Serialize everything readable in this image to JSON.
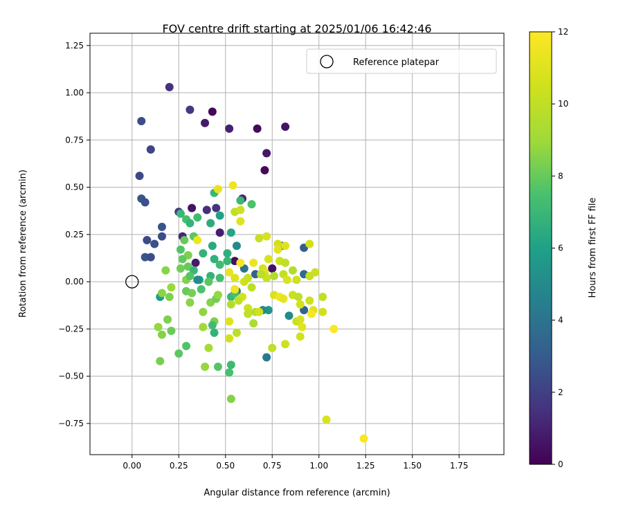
{
  "chart_data": {
    "type": "scatter",
    "title": "FOV centre drift starting at 2025/01/06 16:42:46",
    "xlabel": "Angular distance from reference (arcmin)",
    "ylabel": "Rotation from reference (arcmin)",
    "xlim": [
      -0.225,
      1.99
    ],
    "ylim": [
      -0.915,
      1.315
    ],
    "xticks": [
      0.0,
      0.25,
      0.5,
      0.75,
      1.0,
      1.25,
      1.5,
      1.75
    ],
    "xtick_labels": [
      "0.00",
      "0.25",
      "0.50",
      "0.75",
      "1.00",
      "1.25",
      "1.50",
      "1.75"
    ],
    "yticks": [
      -0.75,
      -0.5,
      -0.25,
      0.0,
      0.25,
      0.5,
      0.75,
      1.0,
      1.25
    ],
    "ytick_labels": [
      "−0.75",
      "−0.50",
      "−0.25",
      "0.00",
      "0.25",
      "0.50",
      "0.75",
      "1.00",
      "1.25"
    ],
    "grid": true,
    "legend": {
      "placement": "top-right",
      "label": "Reference platepar",
      "marker": "hollow-circle"
    },
    "reference_point": {
      "x": 0.0,
      "y": 0.0
    },
    "colorbar": {
      "label": "Hours from first FF file",
      "colormap": "viridis",
      "range": [
        0,
        12
      ],
      "ticks": [
        0,
        2,
        4,
        6,
        8,
        10,
        12
      ],
      "tick_labels": [
        "0",
        "2",
        "4",
        "6",
        "8",
        "10",
        "12"
      ]
    },
    "points": [
      {
        "x": 0.43,
        "y": 0.9,
        "h": 0.2
      },
      {
        "x": 0.67,
        "y": 0.81,
        "h": 0.3
      },
      {
        "x": 0.39,
        "y": 0.84,
        "h": 0.8
      },
      {
        "x": 0.52,
        "y": 0.81,
        "h": 1.0
      },
      {
        "x": 0.82,
        "y": 0.82,
        "h": 0.6
      },
      {
        "x": 0.72,
        "y": 0.68,
        "h": 0.7
      },
      {
        "x": 0.71,
        "y": 0.59,
        "h": 0.3
      },
      {
        "x": 0.2,
        "y": 1.03,
        "h": 1.5
      },
      {
        "x": 0.31,
        "y": 0.91,
        "h": 1.8
      },
      {
        "x": 0.05,
        "y": 0.85,
        "h": 2.5
      },
      {
        "x": 0.1,
        "y": 0.7,
        "h": 2.1
      },
      {
        "x": 0.04,
        "y": 0.56,
        "h": 2.3
      },
      {
        "x": 0.05,
        "y": 0.44,
        "h": 2.8
      },
      {
        "x": 0.07,
        "y": 0.42,
        "h": 2.6
      },
      {
        "x": 0.16,
        "y": 0.29,
        "h": 2.7
      },
      {
        "x": 0.16,
        "y": 0.24,
        "h": 2.5
      },
      {
        "x": 0.08,
        "y": 0.22,
        "h": 2.4
      },
      {
        "x": 0.12,
        "y": 0.2,
        "h": 2.6
      },
      {
        "x": 0.07,
        "y": 0.13,
        "h": 2.8
      },
      {
        "x": 0.1,
        "y": 0.13,
        "h": 2.5
      },
      {
        "x": 0.32,
        "y": 0.39,
        "h": 0.6
      },
      {
        "x": 0.4,
        "y": 0.38,
        "h": 1.4
      },
      {
        "x": 0.45,
        "y": 0.39,
        "h": 1.6
      },
      {
        "x": 0.25,
        "y": 0.37,
        "h": 1.8
      },
      {
        "x": 0.27,
        "y": 0.24,
        "h": 1.2
      },
      {
        "x": 0.47,
        "y": 0.26,
        "h": 0.9
      },
      {
        "x": 0.59,
        "y": 0.44,
        "h": 1.1
      },
      {
        "x": 0.34,
        "y": 0.1,
        "h": 0.8
      },
      {
        "x": 0.55,
        "y": 0.11,
        "h": 0.4
      },
      {
        "x": 0.75,
        "y": 0.07,
        "h": 0.5
      },
      {
        "x": 0.8,
        "y": 0.19,
        "h": 2.4
      },
      {
        "x": 0.92,
        "y": 0.18,
        "h": 3.0
      },
      {
        "x": 0.92,
        "y": 0.04,
        "h": 3.5
      },
      {
        "x": 0.92,
        "y": -0.15,
        "h": 3.3
      },
      {
        "x": 0.72,
        "y": -0.4,
        "h": 4.2
      },
      {
        "x": 0.84,
        "y": -0.18,
        "h": 5.0
      },
      {
        "x": 0.73,
        "y": -0.15,
        "h": 5.5
      },
      {
        "x": 0.7,
        "y": -0.15,
        "h": 5.0
      },
      {
        "x": 0.56,
        "y": -0.05,
        "h": 4.4
      },
      {
        "x": 0.6,
        "y": 0.07,
        "h": 4.0
      },
      {
        "x": 0.66,
        "y": 0.04,
        "h": 3.2
      },
      {
        "x": 0.56,
        "y": 0.19,
        "h": 5.0
      },
      {
        "x": 0.53,
        "y": 0.26,
        "h": 6.2
      },
      {
        "x": 0.47,
        "y": 0.35,
        "h": 6.0
      },
      {
        "x": 0.58,
        "y": 0.43,
        "h": 7.0
      },
      {
        "x": 0.64,
        "y": 0.41,
        "h": 7.5
      },
      {
        "x": 0.44,
        "y": 0.47,
        "h": 7.0
      },
      {
        "x": 0.26,
        "y": 0.36,
        "h": 7.0
      },
      {
        "x": 0.29,
        "y": 0.33,
        "h": 7.4
      },
      {
        "x": 0.31,
        "y": 0.31,
        "h": 6.8
      },
      {
        "x": 0.35,
        "y": 0.34,
        "h": 7.2
      },
      {
        "x": 0.42,
        "y": 0.31,
        "h": 6.5
      },
      {
        "x": 0.33,
        "y": 0.24,
        "h": 7.8
      },
      {
        "x": 0.28,
        "y": 0.22,
        "h": 8.0
      },
      {
        "x": 0.26,
        "y": 0.17,
        "h": 7.6
      },
      {
        "x": 0.3,
        "y": 0.14,
        "h": 8.4
      },
      {
        "x": 0.27,
        "y": 0.12,
        "h": 7.9
      },
      {
        "x": 0.38,
        "y": 0.15,
        "h": 6.8
      },
      {
        "x": 0.43,
        "y": 0.19,
        "h": 6.4
      },
      {
        "x": 0.44,
        "y": 0.12,
        "h": 6.7
      },
      {
        "x": 0.47,
        "y": 0.09,
        "h": 7.2
      },
      {
        "x": 0.51,
        "y": 0.15,
        "h": 6.6
      },
      {
        "x": 0.51,
        "y": 0.11,
        "h": 6.9
      },
      {
        "x": 0.18,
        "y": 0.06,
        "h": 8.6
      },
      {
        "x": 0.26,
        "y": 0.07,
        "h": 8.2
      },
      {
        "x": 0.3,
        "y": 0.08,
        "h": 8.0
      },
      {
        "x": 0.33,
        "y": 0.06,
        "h": 7.0
      },
      {
        "x": 0.29,
        "y": 0.01,
        "h": 8.5
      },
      {
        "x": 0.31,
        "y": 0.03,
        "h": 7.7
      },
      {
        "x": 0.36,
        "y": 0.01,
        "h": 6.2
      },
      {
        "x": 0.42,
        "y": 0.03,
        "h": 6.8
      },
      {
        "x": 0.47,
        "y": 0.02,
        "h": 7.3
      },
      {
        "x": 0.35,
        "y": 0.01,
        "h": 5.0
      },
      {
        "x": 0.41,
        "y": 0.0,
        "h": 7.8
      },
      {
        "x": 0.15,
        "y": -0.08,
        "h": 5.8
      },
      {
        "x": 0.16,
        "y": -0.06,
        "h": 8.6
      },
      {
        "x": 0.2,
        "y": -0.08,
        "h": 8.4
      },
      {
        "x": 0.21,
        "y": -0.03,
        "h": 8.9
      },
      {
        "x": 0.29,
        "y": -0.05,
        "h": 8.0
      },
      {
        "x": 0.32,
        "y": -0.06,
        "h": 8.3
      },
      {
        "x": 0.31,
        "y": -0.11,
        "h": 8.6
      },
      {
        "x": 0.37,
        "y": -0.04,
        "h": 7.5
      },
      {
        "x": 0.42,
        "y": -0.11,
        "h": 8.5
      },
      {
        "x": 0.45,
        "y": -0.09,
        "h": 8.2
      },
      {
        "x": 0.46,
        "y": -0.07,
        "h": 8.8
      },
      {
        "x": 0.53,
        "y": -0.08,
        "h": 7.0
      },
      {
        "x": 0.55,
        "y": -0.06,
        "h": 7.4
      },
      {
        "x": 0.38,
        "y": -0.16,
        "h": 8.7
      },
      {
        "x": 0.44,
        "y": -0.21,
        "h": 8.4
      },
      {
        "x": 0.43,
        "y": -0.23,
        "h": 7.2
      },
      {
        "x": 0.44,
        "y": -0.27,
        "h": 6.8
      },
      {
        "x": 0.38,
        "y": -0.24,
        "h": 9.0
      },
      {
        "x": 0.19,
        "y": -0.2,
        "h": 8.4
      },
      {
        "x": 0.21,
        "y": -0.26,
        "h": 8.1
      },
      {
        "x": 0.14,
        "y": -0.24,
        "h": 8.8
      },
      {
        "x": 0.16,
        "y": -0.28,
        "h": 8.5
      },
      {
        "x": 0.29,
        "y": -0.34,
        "h": 7.6
      },
      {
        "x": 0.25,
        "y": -0.38,
        "h": 7.8
      },
      {
        "x": 0.41,
        "y": -0.35,
        "h": 9.2
      },
      {
        "x": 0.39,
        "y": -0.45,
        "h": 8.8
      },
      {
        "x": 0.15,
        "y": -0.42,
        "h": 8.3
      },
      {
        "x": 0.46,
        "y": -0.45,
        "h": 7.7
      },
      {
        "x": 0.52,
        "y": -0.48,
        "h": 7.4
      },
      {
        "x": 0.53,
        "y": -0.44,
        "h": 7.1
      },
      {
        "x": 0.53,
        "y": -0.62,
        "h": 8.5
      },
      {
        "x": 0.54,
        "y": 0.51,
        "h": 11.5
      },
      {
        "x": 0.46,
        "y": 0.49,
        "h": 11.2
      },
      {
        "x": 0.55,
        "y": 0.37,
        "h": 10.0
      },
      {
        "x": 0.58,
        "y": 0.38,
        "h": 10.4
      },
      {
        "x": 0.58,
        "y": 0.32,
        "h": 11.0
      },
      {
        "x": 0.68,
        "y": 0.23,
        "h": 10.2
      },
      {
        "x": 0.72,
        "y": 0.24,
        "h": 10.8
      },
      {
        "x": 0.78,
        "y": 0.2,
        "h": 10.5
      },
      {
        "x": 0.82,
        "y": 0.19,
        "h": 10.9
      },
      {
        "x": 0.78,
        "y": 0.17,
        "h": 11.1
      },
      {
        "x": 0.73,
        "y": 0.12,
        "h": 10.7
      },
      {
        "x": 0.79,
        "y": 0.11,
        "h": 10.3
      },
      {
        "x": 0.82,
        "y": 0.1,
        "h": 10.0
      },
      {
        "x": 0.35,
        "y": 0.22,
        "h": 11.5
      },
      {
        "x": 0.58,
        "y": 0.1,
        "h": 11.8
      },
      {
        "x": 0.65,
        "y": 0.1,
        "h": 11.4
      },
      {
        "x": 0.7,
        "y": 0.07,
        "h": 10.6
      },
      {
        "x": 0.71,
        "y": 0.05,
        "h": 11.0
      },
      {
        "x": 0.72,
        "y": 0.02,
        "h": 10.2
      },
      {
        "x": 0.69,
        "y": 0.04,
        "h": 9.8
      },
      {
        "x": 0.76,
        "y": 0.03,
        "h": 9.5
      },
      {
        "x": 0.81,
        "y": 0.04,
        "h": 10.1
      },
      {
        "x": 0.86,
        "y": 0.06,
        "h": 9.6
      },
      {
        "x": 0.88,
        "y": 0.01,
        "h": 10.4
      },
      {
        "x": 0.83,
        "y": 0.01,
        "h": 10.8
      },
      {
        "x": 0.95,
        "y": 0.03,
        "h": 10.1
      },
      {
        "x": 0.98,
        "y": 0.05,
        "h": 10.3
      },
      {
        "x": 0.95,
        "y": 0.2,
        "h": 10.5
      },
      {
        "x": 0.52,
        "y": 0.05,
        "h": 11.3
      },
      {
        "x": 0.55,
        "y": 0.02,
        "h": 10.9
      },
      {
        "x": 0.6,
        "y": 0.0,
        "h": 10.5
      },
      {
        "x": 0.64,
        "y": -0.03,
        "h": 9.9
      },
      {
        "x": 0.62,
        "y": 0.02,
        "h": 10.2
      },
      {
        "x": 0.59,
        "y": -0.08,
        "h": 10.7
      },
      {
        "x": 0.57,
        "y": -0.1,
        "h": 10.1
      },
      {
        "x": 0.53,
        "y": -0.12,
        "h": 9.6
      },
      {
        "x": 0.55,
        "y": -0.04,
        "h": 11.6
      },
      {
        "x": 0.62,
        "y": -0.14,
        "h": 10.4
      },
      {
        "x": 0.62,
        "y": -0.17,
        "h": 10.0
      },
      {
        "x": 0.66,
        "y": -0.16,
        "h": 9.7
      },
      {
        "x": 0.68,
        "y": -0.16,
        "h": 10.6
      },
      {
        "x": 0.65,
        "y": -0.22,
        "h": 9.4
      },
      {
        "x": 0.52,
        "y": -0.21,
        "h": 11.0
      },
      {
        "x": 0.52,
        "y": -0.3,
        "h": 10.5
      },
      {
        "x": 0.56,
        "y": -0.27,
        "h": 9.9
      },
      {
        "x": 0.76,
        "y": -0.07,
        "h": 10.8
      },
      {
        "x": 0.79,
        "y": -0.08,
        "h": 11.6
      },
      {
        "x": 0.81,
        "y": -0.09,
        "h": 11.2
      },
      {
        "x": 0.86,
        "y": -0.07,
        "h": 10.3
      },
      {
        "x": 0.89,
        "y": -0.08,
        "h": 10.0
      },
      {
        "x": 0.9,
        "y": -0.12,
        "h": 10.6
      },
      {
        "x": 0.95,
        "y": -0.1,
        "h": 10.4
      },
      {
        "x": 0.97,
        "y": -0.15,
        "h": 10.9
      },
      {
        "x": 0.96,
        "y": -0.17,
        "h": 11.8
      },
      {
        "x": 1.02,
        "y": -0.08,
        "h": 10.1
      },
      {
        "x": 1.02,
        "y": -0.16,
        "h": 10.5
      },
      {
        "x": 0.88,
        "y": -0.21,
        "h": 10.2
      },
      {
        "x": 0.9,
        "y": -0.2,
        "h": 10.7
      },
      {
        "x": 0.91,
        "y": -0.24,
        "h": 11.1
      },
      {
        "x": 0.9,
        "y": -0.29,
        "h": 10.6
      },
      {
        "x": 0.75,
        "y": -0.35,
        "h": 10.0
      },
      {
        "x": 0.82,
        "y": -0.33,
        "h": 10.4
      },
      {
        "x": 1.08,
        "y": -0.25,
        "h": 11.9
      },
      {
        "x": 1.04,
        "y": -0.73,
        "h": 10.8
      },
      {
        "x": 1.24,
        "y": -0.83,
        "h": 11.9
      }
    ]
  }
}
